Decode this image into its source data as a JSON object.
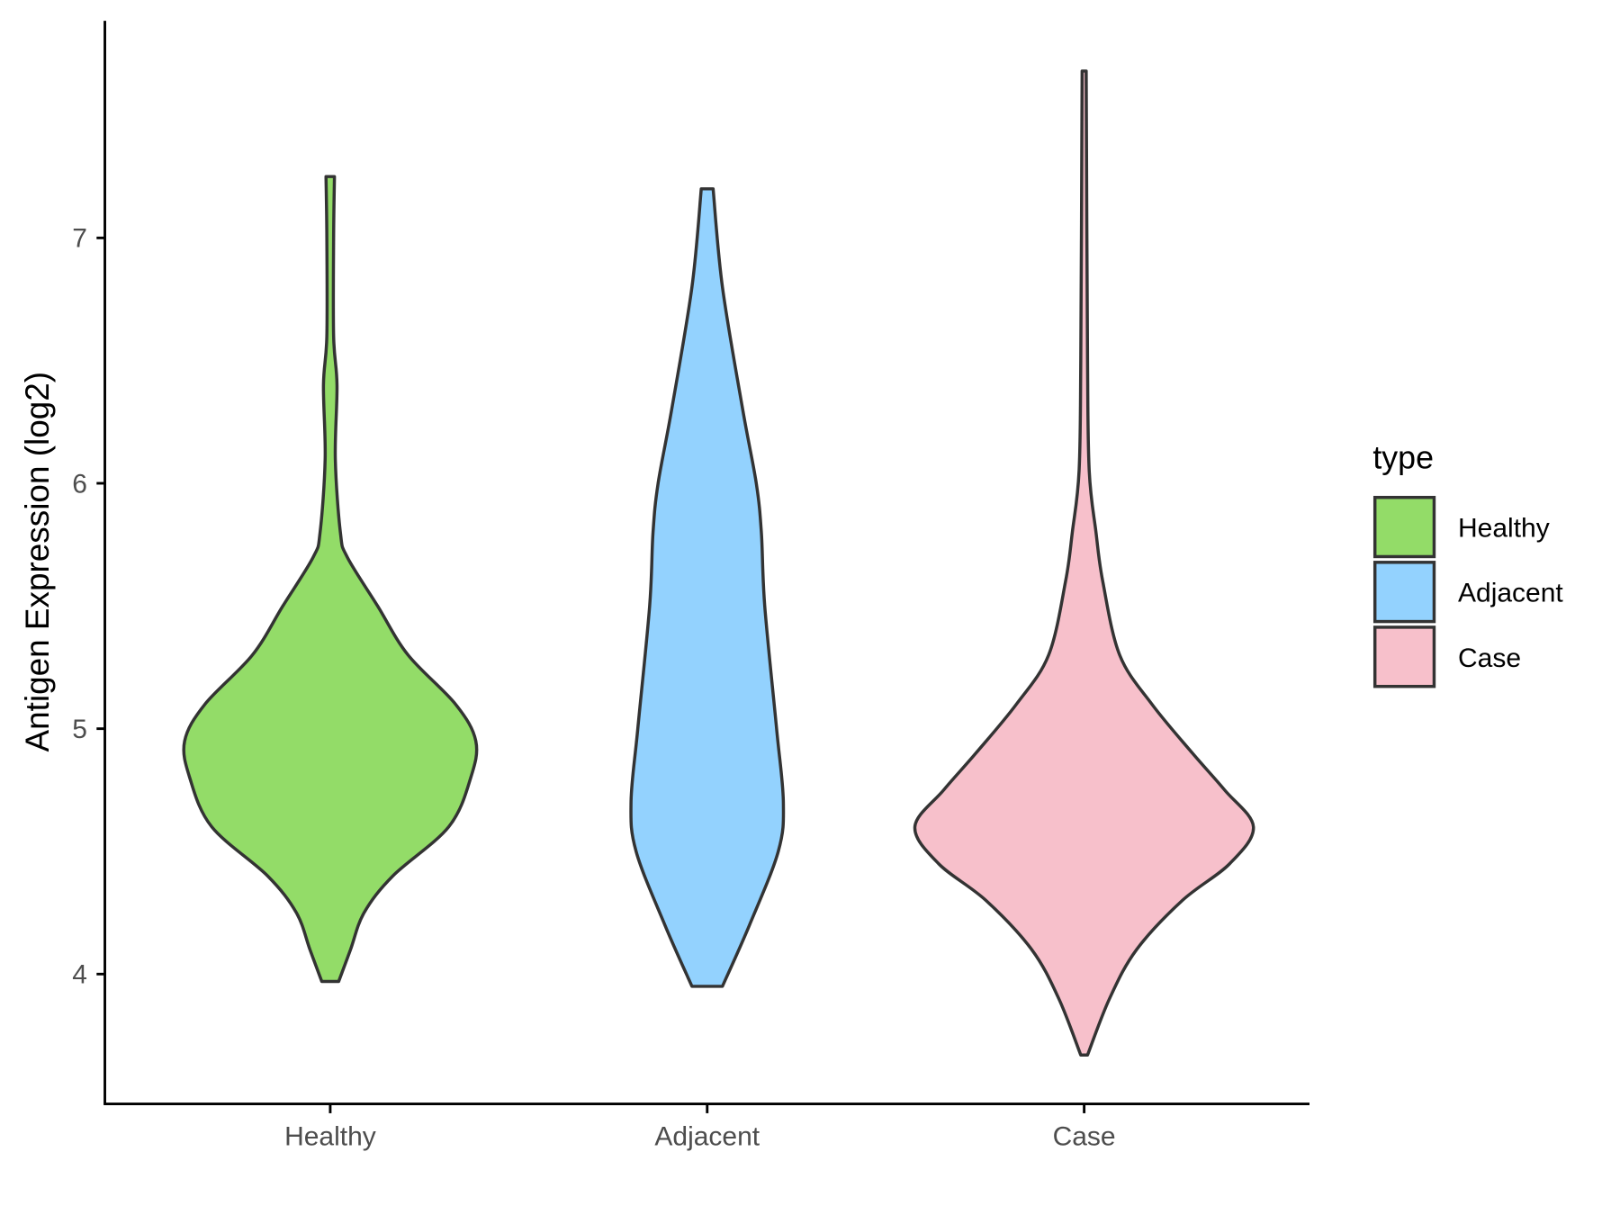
{
  "chart_data": {
    "type": "violin",
    "title": "",
    "xlabel": "",
    "ylabel": "Antigen Expression (log2)",
    "ylim": [
      3.47,
      7.9
    ],
    "yticks": [
      "4",
      "5",
      "6",
      "7"
    ],
    "categories": [
      "Healthy",
      "Adjacent",
      "Case"
    ],
    "legend": {
      "title": "type",
      "position": "right",
      "entries": [
        "Healthy",
        "Adjacent",
        "Case"
      ]
    },
    "colors": {
      "Healthy": "#93dc68",
      "Adjacent": "#93d2fe",
      "Case": "#f7c0cb",
      "outline": "#333333"
    },
    "series": [
      {
        "name": "Healthy",
        "min": 3.97,
        "max": 7.25,
        "density_profile": [
          [
            3.97,
            0.05
          ],
          [
            4.1,
            0.12
          ],
          [
            4.25,
            0.2
          ],
          [
            4.4,
            0.37
          ],
          [
            4.6,
            0.7
          ],
          [
            4.8,
            0.83
          ],
          [
            4.95,
            0.86
          ],
          [
            5.1,
            0.74
          ],
          [
            5.3,
            0.46
          ],
          [
            5.5,
            0.28
          ],
          [
            5.7,
            0.1
          ],
          [
            5.8,
            0.06
          ],
          [
            6.1,
            0.03
          ],
          [
            6.4,
            0.04
          ],
          [
            6.6,
            0.02
          ],
          [
            7.0,
            0.02
          ],
          [
            7.25,
            0.025
          ]
        ]
      },
      {
        "name": "Adjacent",
        "min": 3.95,
        "max": 7.2,
        "density_profile": [
          [
            3.95,
            0.09
          ],
          [
            4.2,
            0.25
          ],
          [
            4.5,
            0.42
          ],
          [
            4.7,
            0.45
          ],
          [
            5.0,
            0.41
          ],
          [
            5.5,
            0.34
          ],
          [
            5.8,
            0.32
          ],
          [
            6.0,
            0.29
          ],
          [
            6.3,
            0.21
          ],
          [
            6.8,
            0.09
          ],
          [
            7.2,
            0.035
          ]
        ]
      },
      {
        "name": "Case",
        "min": 3.67,
        "max": 7.68,
        "density_profile": [
          [
            3.67,
            0.02
          ],
          [
            3.9,
            0.15
          ],
          [
            4.1,
            0.31
          ],
          [
            4.3,
            0.58
          ],
          [
            4.45,
            0.86
          ],
          [
            4.6,
            1.0
          ],
          [
            4.75,
            0.83
          ],
          [
            4.9,
            0.64
          ],
          [
            5.1,
            0.4
          ],
          [
            5.3,
            0.21
          ],
          [
            5.6,
            0.11
          ],
          [
            5.8,
            0.07
          ],
          [
            6.05,
            0.03
          ],
          [
            6.5,
            0.02
          ],
          [
            7.68,
            0.012
          ]
        ]
      }
    ]
  }
}
